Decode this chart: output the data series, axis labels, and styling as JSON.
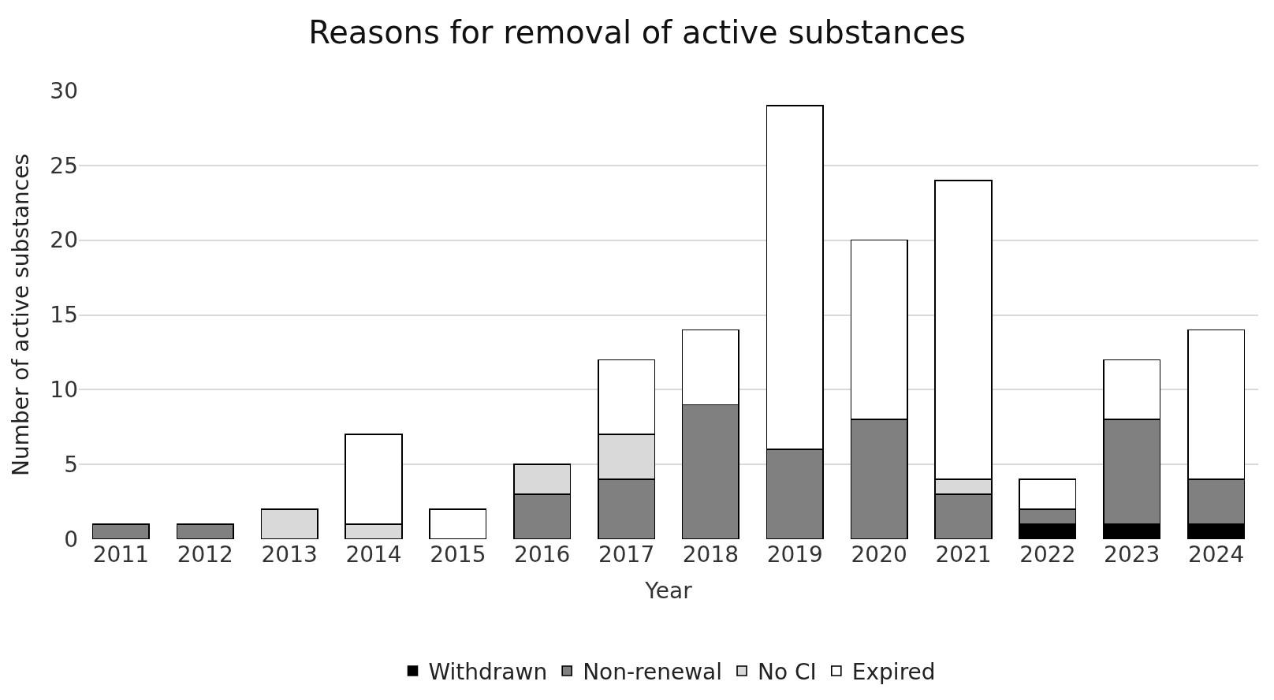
{
  "chart_data": {
    "type": "bar",
    "title": "Reasons for removal of active substances",
    "xlabel": "Year",
    "ylabel": "Number of active substances",
    "categories": [
      "2011",
      "2012",
      "2013",
      "2014",
      "2015",
      "2016",
      "2017",
      "2018",
      "2019",
      "2020",
      "2021",
      "2022",
      "2023",
      "2024"
    ],
    "stacked": true,
    "ylim": [
      0,
      30
    ],
    "yticks": [
      0,
      5,
      10,
      15,
      20,
      25,
      30
    ],
    "grid": "y",
    "legend": "bottom",
    "series": [
      {
        "name": "Withdrawn",
        "color": "#000000",
        "values": [
          0,
          0,
          0,
          0,
          0,
          0,
          0,
          0,
          0,
          0,
          0,
          1,
          1,
          1
        ]
      },
      {
        "name": "Non-renewal",
        "color": "#808080",
        "values": [
          1,
          1,
          0,
          0,
          0,
          3,
          4,
          9,
          6,
          8,
          3,
          1,
          7,
          3
        ]
      },
      {
        "name": "No CI",
        "color": "#d9d9d9",
        "values": [
          0,
          0,
          2,
          1,
          0,
          2,
          3,
          0,
          0,
          0,
          1,
          0,
          0,
          0
        ]
      },
      {
        "name": "Expired",
        "color": "#ffffff",
        "values": [
          0,
          0,
          0,
          6,
          2,
          0,
          5,
          5,
          23,
          12,
          20,
          2,
          4,
          10
        ]
      }
    ]
  }
}
